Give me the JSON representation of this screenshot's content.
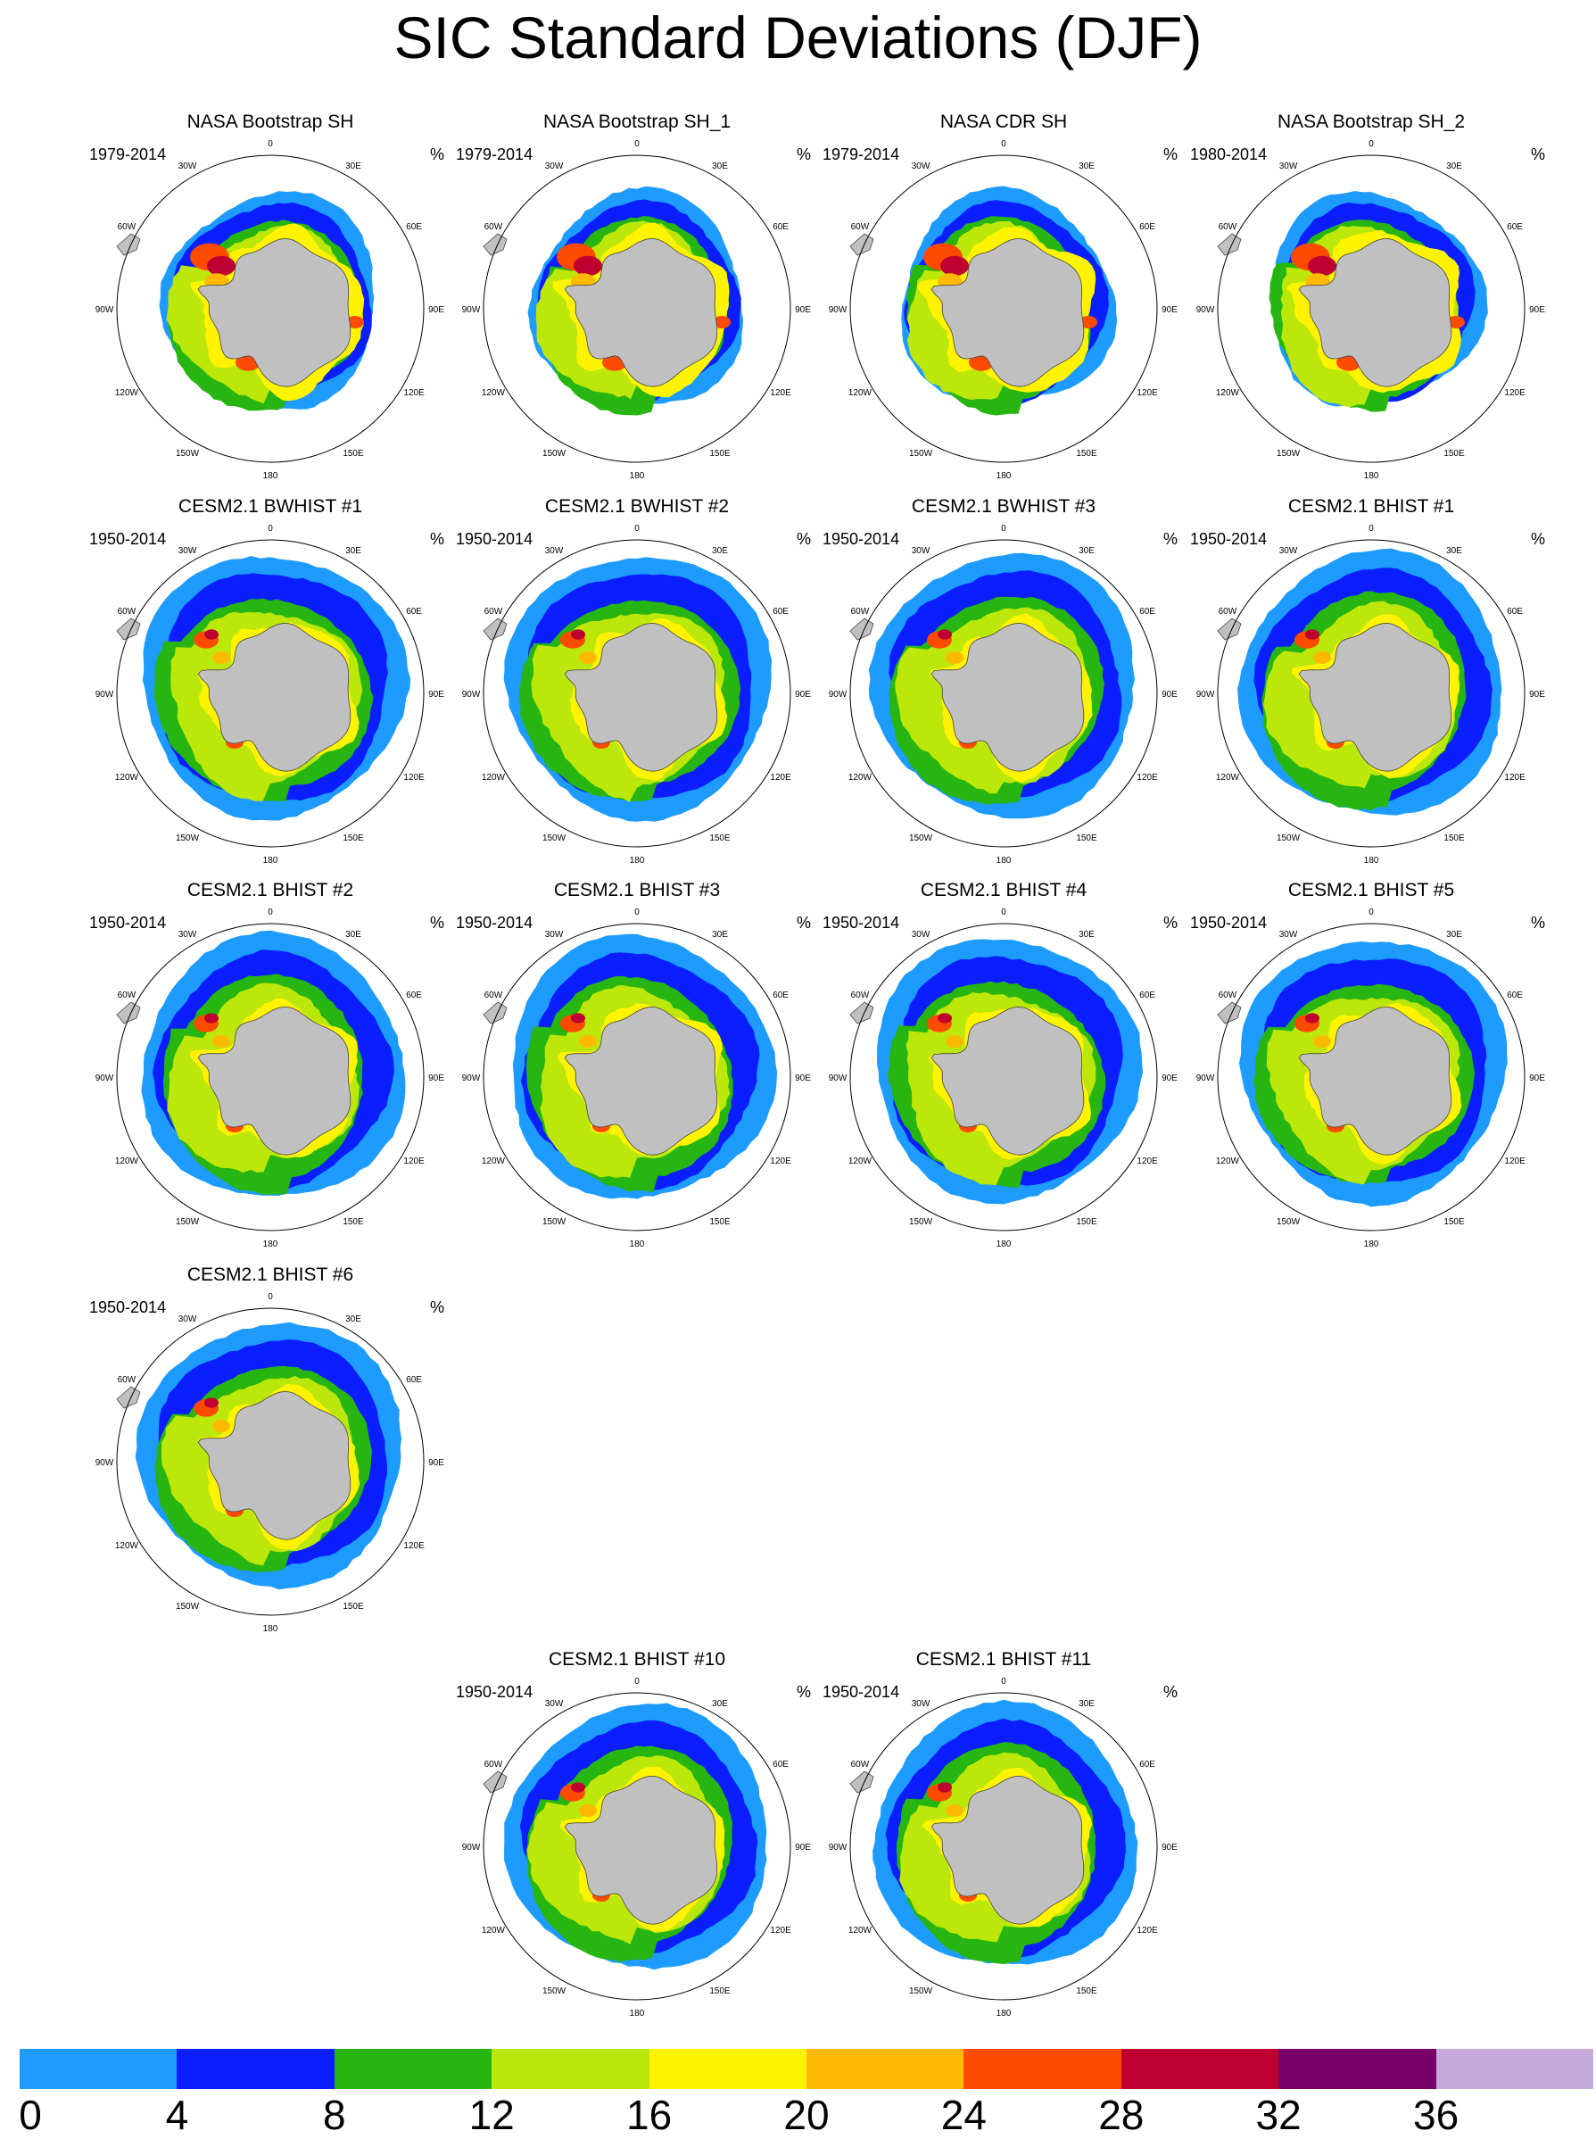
{
  "title": "SIC Standard Deviations (DJF)",
  "unit": "%",
  "lon_labels": [
    "0",
    "30E",
    "60E",
    "90E",
    "120E",
    "150E",
    "180",
    "150W",
    "120W",
    "90W",
    "60W",
    "30W"
  ],
  "panels": [
    {
      "title": "NASA Bootstrap SH",
      "period": "1979-2014",
      "type": "obs",
      "variant": 0
    },
    {
      "title": "NASA Bootstrap SH_1",
      "period": "1979-2014",
      "type": "obs",
      "variant": 1
    },
    {
      "title": "NASA CDR SH",
      "period": "1979-2014",
      "type": "obs",
      "variant": 2
    },
    {
      "title": "NASA Bootstrap SH_2",
      "period": "1980-2014",
      "type": "obs",
      "variant": 3
    },
    {
      "title": "CESM2.1 BWHIST #1",
      "period": "1950-2014",
      "type": "model",
      "variant": 0
    },
    {
      "title": "CESM2.1 BWHIST #2",
      "period": "1950-2014",
      "type": "model",
      "variant": 1
    },
    {
      "title": "CESM2.1 BWHIST #3",
      "period": "1950-2014",
      "type": "model",
      "variant": 2
    },
    {
      "title": "CESM2.1 BHIST #1",
      "period": "1950-2014",
      "type": "model",
      "variant": 3
    },
    {
      "title": "CESM2.1 BHIST #2",
      "period": "1950-2014",
      "type": "model",
      "variant": 4
    },
    {
      "title": "CESM2.1 BHIST #3",
      "period": "1950-2014",
      "type": "model",
      "variant": 5
    },
    {
      "title": "CESM2.1 BHIST #4",
      "period": "1950-2014",
      "type": "model",
      "variant": 6
    },
    {
      "title": "CESM2.1 BHIST #5",
      "period": "1950-2014",
      "type": "model",
      "variant": 7
    },
    {
      "title": "CESM2.1 BHIST #6",
      "period": "1950-2014",
      "type": "model",
      "variant": 8
    },
    {
      "title": "CESM2.1 BHIST #10",
      "period": "1950-2014",
      "type": "model",
      "variant": 9
    },
    {
      "title": "CESM2.1 BHIST #11",
      "period": "1950-2014",
      "type": "model",
      "variant": 10
    }
  ],
  "colorbar": {
    "colors": [
      "#1e9bff",
      "#0a1eff",
      "#26b511",
      "#bbe70a",
      "#fff300",
      "#ffb900",
      "#ff4b00",
      "#be0030",
      "#7a0068",
      "#c5a9d8"
    ],
    "ticks": [
      "0",
      "4",
      "8",
      "12",
      "16",
      "20",
      "24",
      "28",
      "32",
      "36"
    ]
  }
}
